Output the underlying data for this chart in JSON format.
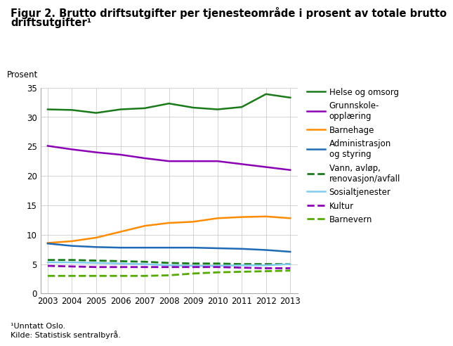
{
  "title_line1": "Figur 2. Brutto driftsutgifter per tjenesteområde i prosent av totale brutto",
  "title_line2": "driftsutgifter¹",
  "ylabel": "Prosent",
  "footnote1": "¹Unntatt Oslo.",
  "footnote2": "Kilde: Statistisk sentralbyrå.",
  "years": [
    2003,
    2004,
    2005,
    2006,
    2007,
    2008,
    2009,
    2010,
    2011,
    2012,
    2013
  ],
  "series": [
    {
      "label": "Helse og omsorg",
      "color": "#1a7a1a",
      "linestyle": "solid",
      "linewidth": 1.8,
      "values": [
        31.3,
        31.2,
        30.7,
        31.3,
        31.5,
        32.3,
        31.6,
        31.3,
        31.7,
        33.9,
        33.3
      ]
    },
    {
      "label": "Grunnskole-\nopplæring",
      "color": "#8b00b5",
      "linestyle": "solid",
      "linewidth": 1.8,
      "values": [
        25.1,
        24.5,
        24.0,
        23.6,
        23.0,
        22.5,
        22.5,
        22.5,
        22.0,
        21.5,
        21.0
      ]
    },
    {
      "label": "Barnehage",
      "color": "#ff8c00",
      "linestyle": "solid",
      "linewidth": 1.8,
      "values": [
        8.6,
        8.9,
        9.5,
        10.5,
        11.5,
        12.0,
        12.2,
        12.8,
        13.0,
        13.1,
        12.8
      ]
    },
    {
      "label": "Administrasjon\nog styring",
      "color": "#1e6ab5",
      "linestyle": "solid",
      "linewidth": 1.8,
      "values": [
        8.5,
        8.1,
        7.9,
        7.8,
        7.8,
        7.8,
        7.8,
        7.7,
        7.6,
        7.4,
        7.1
      ]
    },
    {
      "label": "Vann, avløp,\nrenovasjon/avfall",
      "color": "#1a7a1a",
      "linestyle": "dashed",
      "linewidth": 2.0,
      "values": [
        5.7,
        5.7,
        5.6,
        5.5,
        5.4,
        5.2,
        5.1,
        5.1,
        5.0,
        5.0,
        5.0
      ]
    },
    {
      "label": "Sosialtjenester",
      "color": "#80ccee",
      "linestyle": "solid",
      "linewidth": 1.8,
      "values": [
        5.3,
        5.3,
        5.2,
        5.1,
        5.0,
        4.8,
        4.7,
        4.7,
        4.8,
        4.8,
        5.0
      ]
    },
    {
      "label": "Kultur",
      "color": "#8b00b5",
      "linestyle": "dashed",
      "linewidth": 2.0,
      "values": [
        4.7,
        4.6,
        4.5,
        4.5,
        4.5,
        4.5,
        4.5,
        4.5,
        4.4,
        4.3,
        4.3
      ]
    },
    {
      "label": "Barnevern",
      "color": "#55aa00",
      "linestyle": "dashed",
      "linewidth": 2.0,
      "values": [
        3.0,
        3.0,
        3.0,
        3.0,
        3.0,
        3.1,
        3.4,
        3.6,
        3.7,
        3.8,
        3.9
      ]
    }
  ],
  "xlim": [
    2003,
    2013
  ],
  "ylim": [
    0,
    35
  ],
  "yticks": [
    0,
    5,
    10,
    15,
    20,
    25,
    30,
    35
  ],
  "background_color": "#ffffff",
  "grid_color": "#cccccc",
  "title_fontsize": 10.5,
  "ylabel_fontsize": 8.5,
  "tick_fontsize": 8.5,
  "legend_fontsize": 8.5,
  "footnote_fontsize": 8
}
